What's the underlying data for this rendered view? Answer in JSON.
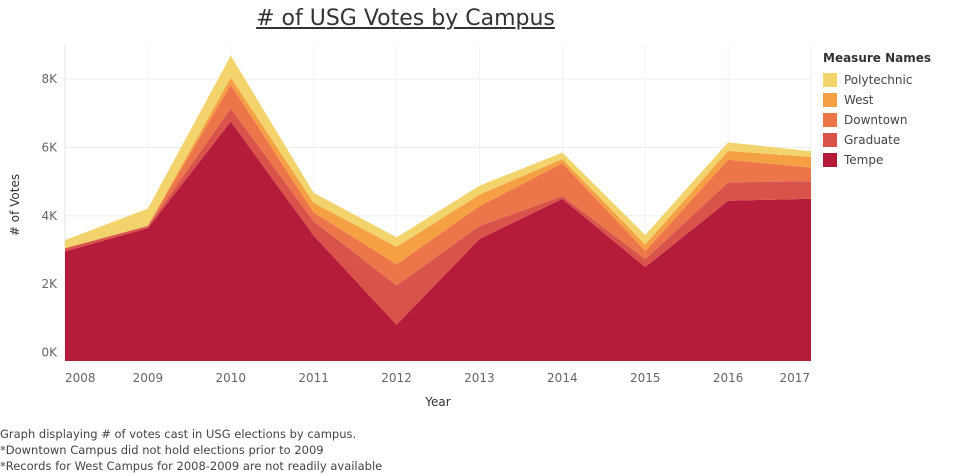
{
  "chart_data": {
    "type": "area",
    "stacked": true,
    "title": "# of USG Votes by Campus",
    "xlabel": "Year",
    "ylabel": "# of Votes",
    "x": [
      "2008",
      "2009",
      "2010",
      "2011",
      "2012",
      "2013",
      "2014",
      "2015",
      "2016",
      "2017"
    ],
    "ylim": [
      -250,
      9000
    ],
    "yticks": [
      0,
      2000,
      4000,
      6000,
      8000
    ],
    "ytick_labels": [
      "0K",
      "2K",
      "4K",
      "6K",
      "8K"
    ],
    "grid": true,
    "legend_title": "Measure Names",
    "legend_position": "right",
    "series": [
      {
        "name": "Tempe",
        "color": "#b51c3a",
        "values": [
          2960,
          3640,
          6760,
          3420,
          810,
          3320,
          4500,
          2500,
          4440,
          4500
        ]
      },
      {
        "name": "Graduate",
        "color": "#d9534a",
        "values": [
          90,
          60,
          380,
          420,
          1150,
          380,
          80,
          230,
          540,
          510
        ]
      },
      {
        "name": "Downtown",
        "color": "#ec7649",
        "values": [
          0,
          10,
          700,
          260,
          620,
          580,
          960,
          240,
          660,
          400
        ]
      },
      {
        "name": "West",
        "color": "#f5a043",
        "values": [
          0,
          0,
          210,
          280,
          510,
          340,
          120,
          190,
          260,
          310
        ]
      },
      {
        "name": "Polytechnic",
        "color": "#f3d36c",
        "values": [
          240,
          500,
          640,
          290,
          280,
          260,
          190,
          280,
          250,
          170
        ]
      }
    ],
    "legend_order": [
      "Polytechnic",
      "West",
      "Downtown",
      "Graduate",
      "Tempe"
    ]
  },
  "notes": [
    "Graph displaying # of votes cast in USG elections by campus.",
    "*Downtown Campus did not hold elections prior to 2009",
    "*Records for West Campus for 2008-2009 are not readily available"
  ]
}
